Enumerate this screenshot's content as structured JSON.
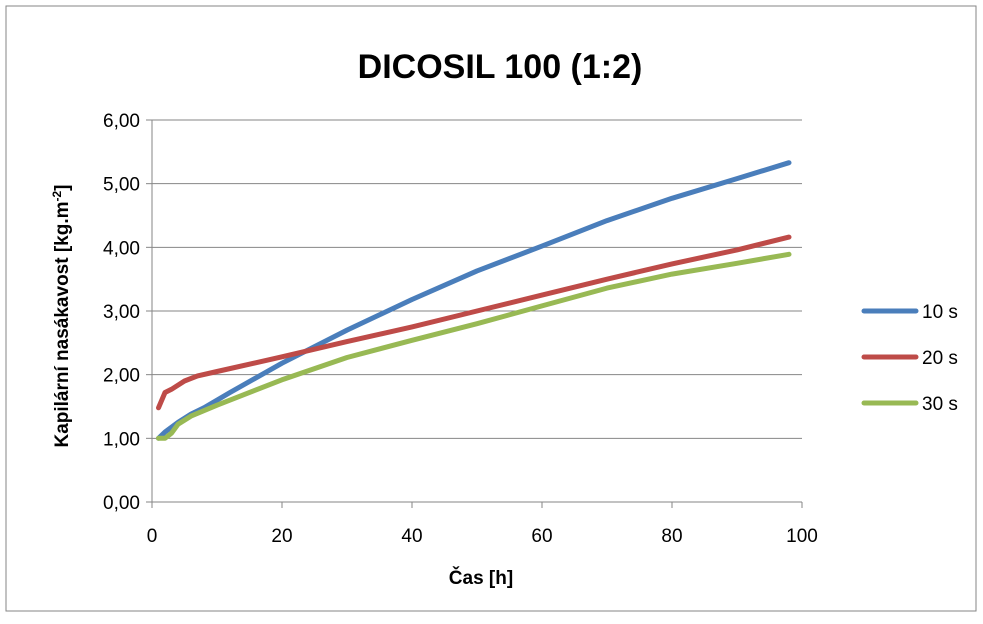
{
  "chart_data": {
    "type": "line",
    "title": "DICOSIL 100 (1:2)",
    "xlabel": "Čas [h]",
    "ylabel": "Kapilární nasákavost [kg.m",
    "ylabel_sup": "-2",
    "ylabel_end": "]",
    "xlim": [
      0,
      100
    ],
    "ylim": [
      0,
      6
    ],
    "xticks": [
      "0",
      "20",
      "40",
      "60",
      "80",
      "100"
    ],
    "yticks": [
      "0,00",
      "1,00",
      "2,00",
      "3,00",
      "4,00",
      "5,00",
      "6,00"
    ],
    "grid": "horizontal",
    "legend_position": "right",
    "series": [
      {
        "name": "10 s",
        "color": "#4a7ebb",
        "points": [
          [
            1,
            1.0
          ],
          [
            2,
            1.1
          ],
          [
            4,
            1.25
          ],
          [
            6,
            1.38
          ],
          [
            8,
            1.48
          ],
          [
            12,
            1.72
          ],
          [
            20,
            2.18
          ],
          [
            30,
            2.7
          ],
          [
            40,
            3.18
          ],
          [
            50,
            3.63
          ],
          [
            60,
            4.02
          ],
          [
            70,
            4.42
          ],
          [
            80,
            4.77
          ],
          [
            90,
            5.08
          ],
          [
            98,
            5.33
          ]
        ]
      },
      {
        "name": "20 s",
        "color": "#be4b48",
        "points": [
          [
            1,
            1.48
          ],
          [
            2,
            1.72
          ],
          [
            3,
            1.77
          ],
          [
            5,
            1.9
          ],
          [
            7,
            1.98
          ],
          [
            10,
            2.05
          ],
          [
            20,
            2.28
          ],
          [
            30,
            2.52
          ],
          [
            40,
            2.75
          ],
          [
            50,
            3.0
          ],
          [
            60,
            3.25
          ],
          [
            70,
            3.5
          ],
          [
            80,
            3.74
          ],
          [
            90,
            3.96
          ],
          [
            98,
            4.16
          ]
        ]
      },
      {
        "name": "30 s",
        "color": "#98b954",
        "points": [
          [
            1,
            1.0
          ],
          [
            2,
            1.0
          ],
          [
            3,
            1.08
          ],
          [
            4,
            1.22
          ],
          [
            6,
            1.35
          ],
          [
            10,
            1.52
          ],
          [
            20,
            1.92
          ],
          [
            30,
            2.27
          ],
          [
            40,
            2.54
          ],
          [
            50,
            2.8
          ],
          [
            60,
            3.08
          ],
          [
            70,
            3.36
          ],
          [
            80,
            3.58
          ],
          [
            90,
            3.75
          ],
          [
            98,
            3.89
          ]
        ]
      }
    ]
  }
}
